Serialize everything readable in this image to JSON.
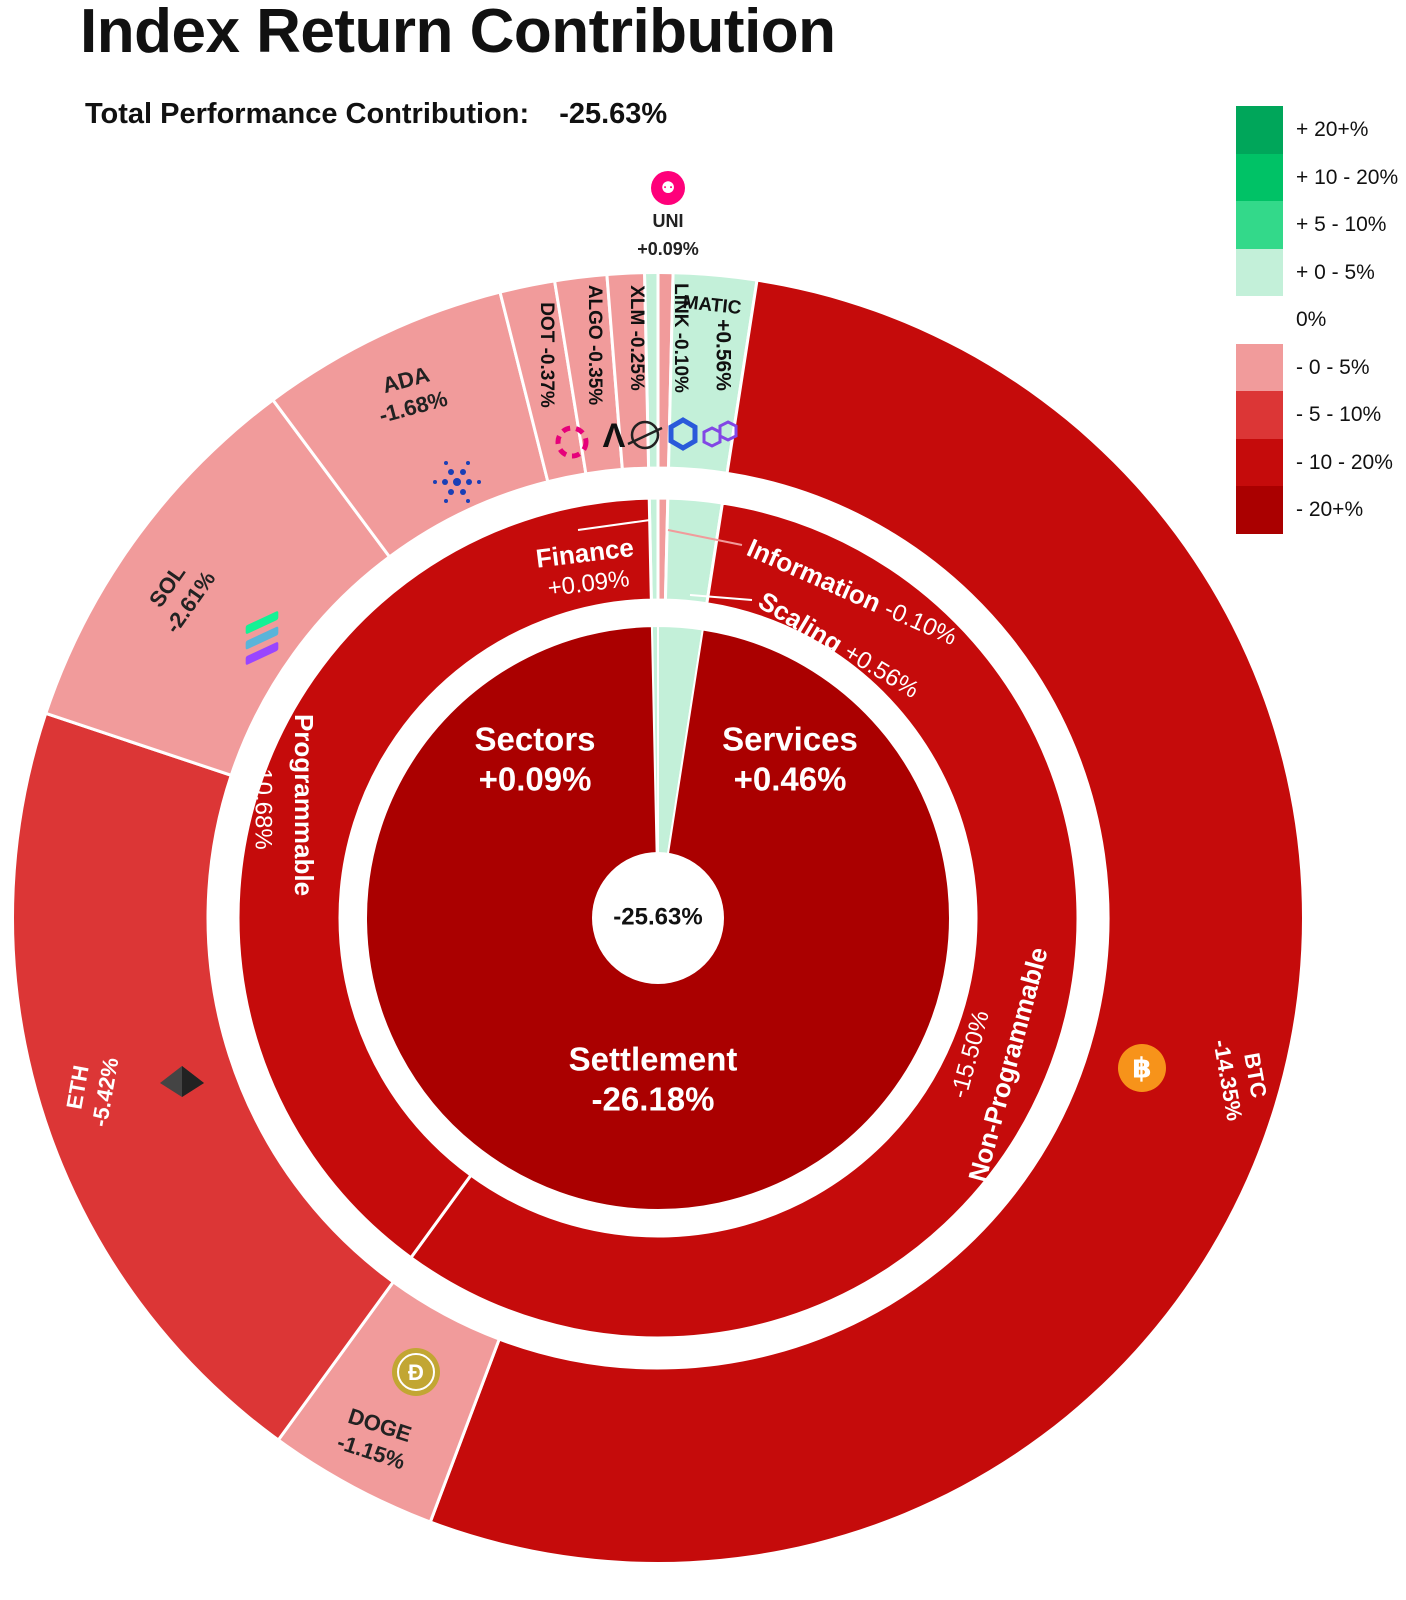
{
  "header": {
    "title": "Index Return Contribution",
    "subtitle_label": "Total Performance Contribution:",
    "subtitle_value": "-25.63%"
  },
  "colors": {
    "pos_20_plus": "#00a65a",
    "pos_10_20": "#00c266",
    "pos_5_10": "#33d98a",
    "pos_0_5": "#c3f0d9",
    "neg_0_5": "#f19b9b",
    "neg_5_10": "#dc3636",
    "neg_10_20": "#c50b0b",
    "neg_20_plus": "#aa0000"
  },
  "legend": [
    {
      "label": "+ 20+%",
      "color": "#00a65a"
    },
    {
      "label": "+ 10 - 20%",
      "color": "#00c266"
    },
    {
      "label": "+ 5 - 10%",
      "color": "#33d98a"
    },
    {
      "label": "+ 0 - 5%",
      "color": "#c3f0d9"
    },
    {
      "label": "0%",
      "color": "#ffffff"
    },
    {
      "label": "- 0 - 5%",
      "color": "#f19b9b"
    },
    {
      "label": "- 5 - 10%",
      "color": "#dc3636"
    },
    {
      "label": "- 10 - 20%",
      "color": "#c50b0b"
    },
    {
      "label": "- 20+%",
      "color": "#aa0000"
    }
  ],
  "chart_data": {
    "type": "sunburst",
    "total": "-25.63%",
    "total_value": -25.63,
    "sectors": [
      {
        "name": "Sectors",
        "value": 0.09,
        "label": "+0.09%"
      },
      {
        "name": "Services",
        "value": 0.46,
        "label": "+0.46%"
      },
      {
        "name": "Settlement",
        "value": -26.18,
        "label": "-26.18%"
      }
    ],
    "sub_sectors": [
      {
        "name": "Finance",
        "sector": "Sectors",
        "value": 0.09,
        "label": "+0.09%"
      },
      {
        "name": "Information",
        "sector": "Services",
        "value": -0.1,
        "label": "-0.10%"
      },
      {
        "name": "Scaling",
        "sector": "Services",
        "value": 0.56,
        "label": "+0.56%"
      },
      {
        "name": "Non-Programmable",
        "sector": "Settlement",
        "value": -15.5,
        "label": "-15.50%"
      },
      {
        "name": "Programmable",
        "sector": "Settlement",
        "value": -10.68,
        "label": "-10.68%"
      }
    ],
    "assets": [
      {
        "name": "UNI",
        "sub_sector": "Finance",
        "value": 0.09,
        "label": "+0.09%",
        "icon": "uniswap-icon"
      },
      {
        "name": "LINK",
        "sub_sector": "Information",
        "value": -0.1,
        "label": "-0.10%",
        "icon": "chainlink-icon"
      },
      {
        "name": "MATIC",
        "sub_sector": "Scaling",
        "value": 0.56,
        "label": "+0.56%",
        "icon": "polygon-icon"
      },
      {
        "name": "BTC",
        "sub_sector": "Non-Programmable",
        "value": -14.35,
        "label": "-14.35%",
        "icon": "bitcoin-icon"
      },
      {
        "name": "DOGE",
        "sub_sector": "Non-Programmable",
        "value": -1.15,
        "label": "-1.15%",
        "icon": "dogecoin-icon"
      },
      {
        "name": "ETH",
        "sub_sector": "Programmable",
        "value": -5.42,
        "label": "-5.42%",
        "icon": "ethereum-icon"
      },
      {
        "name": "SOL",
        "sub_sector": "Programmable",
        "value": -2.61,
        "label": "-2.61%",
        "icon": "solana-icon"
      },
      {
        "name": "ADA",
        "sub_sector": "Programmable",
        "value": -1.68,
        "label": "-1.68%",
        "icon": "cardano-icon"
      },
      {
        "name": "DOT",
        "sub_sector": "Programmable",
        "value": -0.37,
        "label": "-0.37%",
        "icon": "polkadot-icon"
      },
      {
        "name": "ALGO",
        "sub_sector": "Programmable",
        "value": -0.35,
        "label": "-0.35%",
        "icon": "algorand-icon"
      },
      {
        "name": "XLM",
        "sub_sector": "Programmable",
        "value": -0.25,
        "label": "-0.25%",
        "icon": "stellar-icon"
      }
    ]
  }
}
